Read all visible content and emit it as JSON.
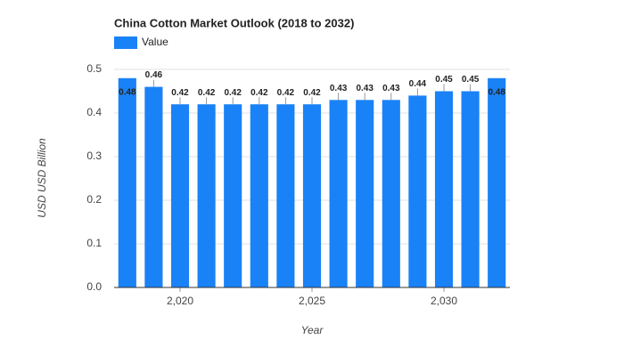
{
  "chart_data": {
    "type": "bar",
    "title": "China Cotton Market Outlook (2018 to 2032)",
    "x": [
      2018,
      2019,
      2020,
      2021,
      2022,
      2023,
      2024,
      2025,
      2026,
      2027,
      2028,
      2029,
      2030,
      2031,
      2032
    ],
    "series": [
      {
        "name": "Value",
        "color": "#1a82f7",
        "values": [
          0.48,
          0.46,
          0.42,
          0.42,
          0.42,
          0.42,
          0.42,
          0.42,
          0.43,
          0.43,
          0.43,
          0.44,
          0.45,
          0.45,
          0.48
        ]
      }
    ],
    "xlim": [
      2017.5,
      2032.5
    ],
    "xticks": [
      {
        "value": 2020,
        "label": "2,020"
      },
      {
        "value": 2025,
        "label": "2,025"
      },
      {
        "value": 2030,
        "label": "2,030"
      }
    ],
    "ylim": [
      0,
      0.5
    ],
    "yticks": [
      {
        "value": 0,
        "label": "0.0"
      },
      0.1,
      0.2,
      0.3,
      0.4,
      0.5
    ],
    "xlabel": "Year",
    "ylabel": "USD USD Billion",
    "grid": true
  }
}
